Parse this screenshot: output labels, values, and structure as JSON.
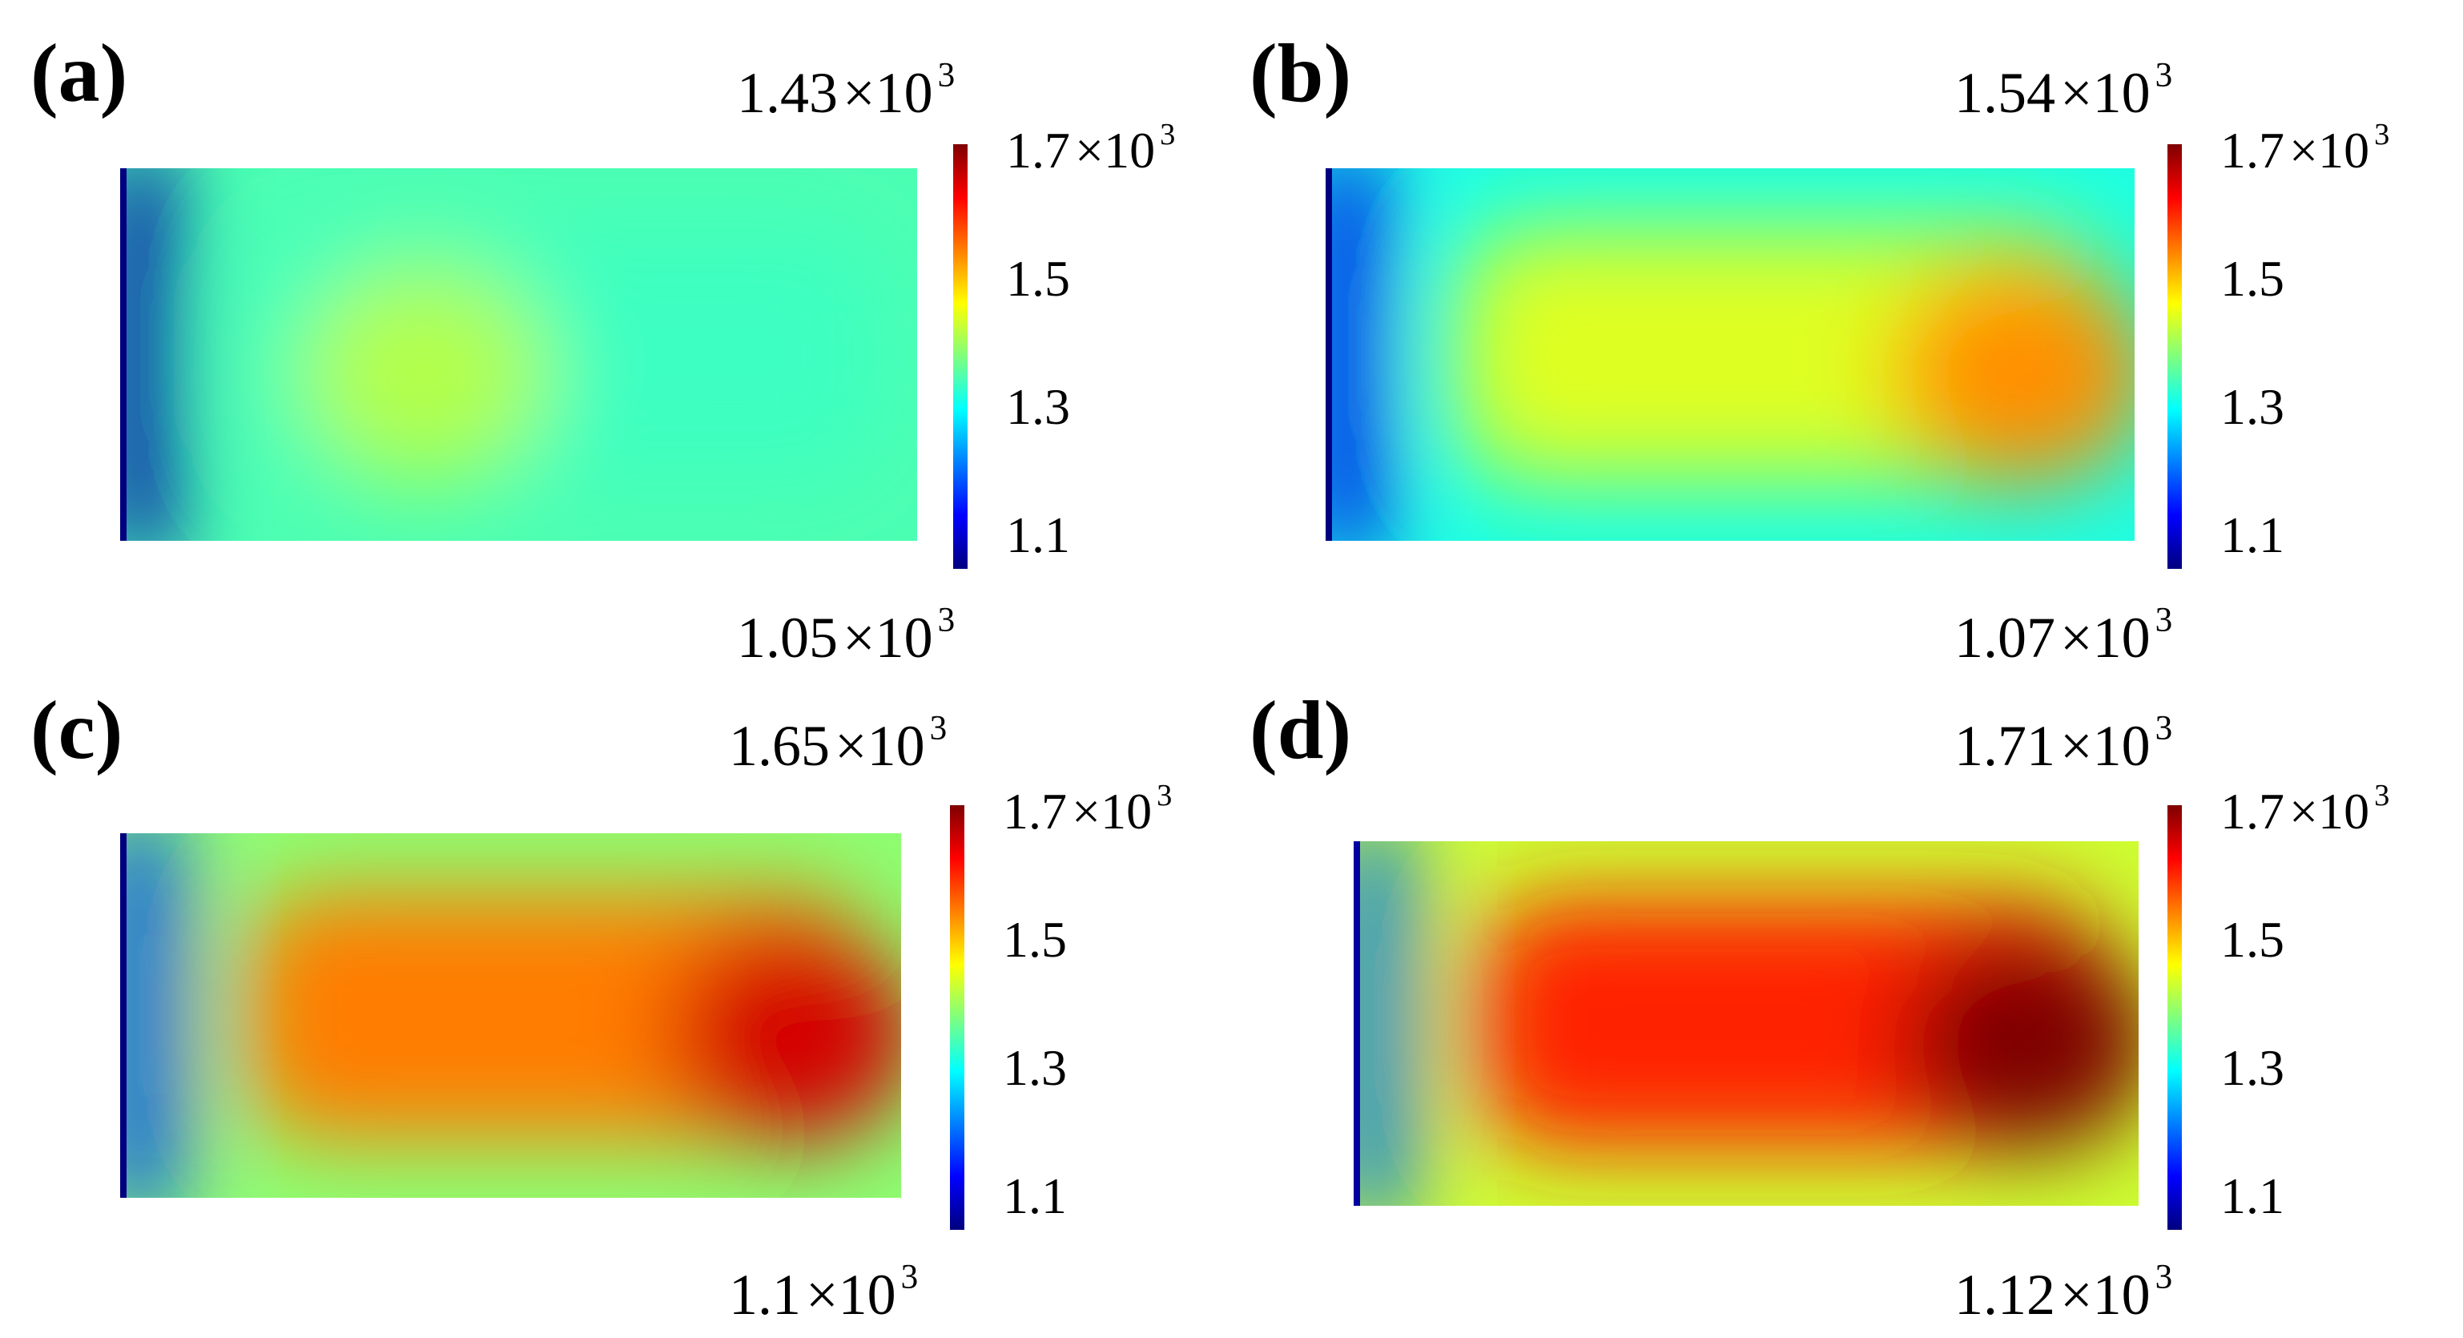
{
  "chart_data": [
    {
      "type": "heatmap",
      "panel_label": "(a)",
      "max_label": "1.43",
      "min_label": "1.05",
      "max": 1430,
      "min": 1050,
      "colorbar": {
        "ticks": [
          "1.7",
          "1.5",
          "1.3",
          "1.1"
        ],
        "top_tick_unit": "×10",
        "exponent": "3",
        "range": [
          1100,
          1700
        ]
      }
    },
    {
      "type": "heatmap",
      "panel_label": "(b)",
      "max_label": "1.54",
      "min_label": "1.07",
      "max": 1540,
      "min": 1070,
      "colorbar": {
        "ticks": [
          "1.7",
          "1.5",
          "1.3",
          "1.1"
        ],
        "top_tick_unit": "×10",
        "exponent": "3",
        "range": [
          1100,
          1700
        ]
      }
    },
    {
      "type": "heatmap",
      "panel_label": "(c)",
      "max_label": "1.65",
      "min_label": "1.1",
      "max": 1650,
      "min": 1100,
      "colorbar": {
        "ticks": [
          "1.7",
          "1.5",
          "1.3",
          "1.1"
        ],
        "top_tick_unit": "×10",
        "exponent": "3",
        "range": [
          1100,
          1700
        ]
      }
    },
    {
      "type": "heatmap",
      "panel_label": "(d)",
      "max_label": "1.71",
      "min_label": "1.12",
      "max": 1710,
      "min": 1120,
      "colorbar": {
        "ticks": [
          "1.7",
          "1.5",
          "1.3",
          "1.1"
        ],
        "top_tick_unit": "×10",
        "exponent": "3",
        "range": [
          1100,
          1700
        ]
      }
    }
  ],
  "unit": {
    "multiplier": "×10",
    "exponent": "3"
  },
  "colormap": [
    "#00007f",
    "#0000ff",
    "#007fff",
    "#00ffff",
    "#7fff7f",
    "#ffff00",
    "#ff7f00",
    "#ff0000",
    "#7f0000"
  ]
}
